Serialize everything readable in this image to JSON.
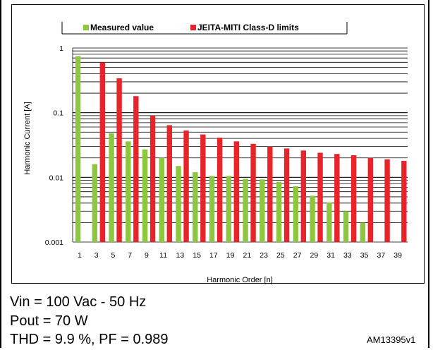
{
  "chart_data": {
    "type": "bar",
    "title": "",
    "xlabel": "Harmonic Order [n]",
    "ylabel": "Harmonic Current [A]",
    "yscale": "log",
    "ylim": [
      0.001,
      1
    ],
    "yticks": [
      "1",
      "0.1",
      "0.01",
      "0.001"
    ],
    "grid": "horizontal",
    "legend_position": "top",
    "categories": [
      "1",
      "3",
      "5",
      "7",
      "9",
      "11",
      "13",
      "15",
      "17",
      "19",
      "21",
      "23",
      "25",
      "27",
      "29",
      "31",
      "33",
      "35",
      "37",
      "39"
    ],
    "series": [
      {
        "name": "Measured value",
        "color": "#8dc63f",
        "values": [
          0.75,
          0.016,
          0.048,
          0.036,
          0.027,
          0.02,
          0.015,
          0.012,
          0.0105,
          0.0105,
          0.0095,
          0.0093,
          0.0085,
          0.0073,
          0.0052,
          0.0041,
          0.003,
          0.002,
          null,
          null
        ]
      },
      {
        "name": "JEITA-MITI Class-D limits",
        "color": "#e8242a",
        "values": [
          null,
          0.6,
          0.34,
          0.18,
          0.09,
          0.064,
          0.053,
          0.046,
          0.041,
          0.036,
          0.033,
          0.03,
          0.028,
          0.026,
          0.024,
          0.023,
          0.022,
          0.02,
          0.019,
          0.018
        ]
      }
    ]
  },
  "caption": {
    "line1": "Vin = 100 Vac - 50 Hz",
    "line2": "Pout = 70 W",
    "line3": "THD = 9.9 %, PF = 0.989"
  },
  "figure_id": "AM13395v1"
}
